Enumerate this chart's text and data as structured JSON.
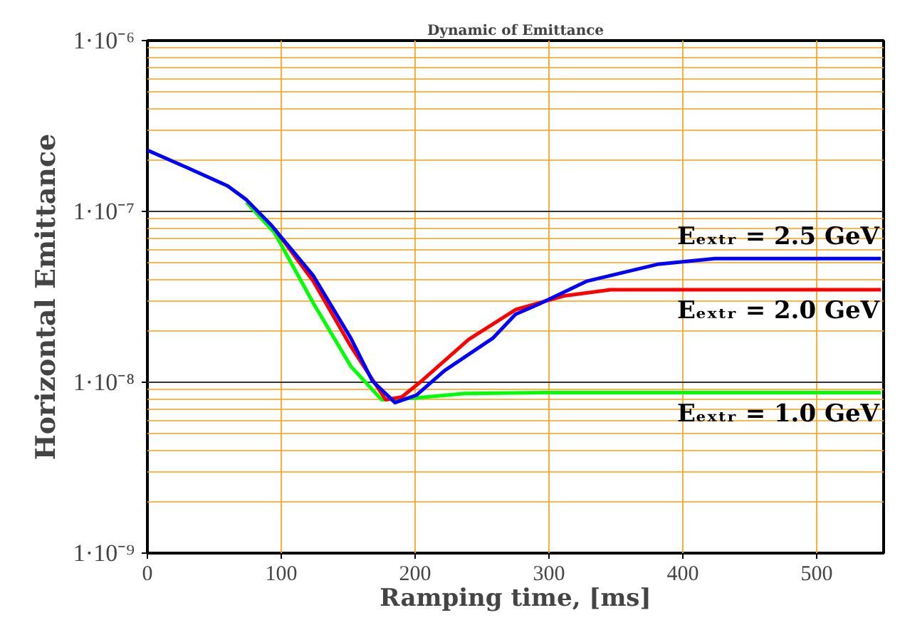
{
  "chart_data": {
    "type": "line",
    "title": "Dynamic of Emittance",
    "xlabel": "Ramping time, [ms]",
    "ylabel": "Horizontal Emittance",
    "log": "y",
    "grid": true,
    "xlim": [
      0,
      550
    ],
    "xticks": [
      0,
      100,
      200,
      300,
      400,
      500
    ],
    "ylim": [
      1e-09,
      1e-06
    ],
    "yticks": [
      {
        "value": 1e-09,
        "label": "1·10⁻⁹"
      },
      {
        "value": 2e-09,
        "label": null
      },
      {
        "value": 3e-09,
        "label": null
      },
      {
        "value": 4e-09,
        "label": null
      },
      {
        "value": 5e-09,
        "label": null
      },
      {
        "value": 6e-09,
        "label": null
      },
      {
        "value": 7e-09,
        "label": null
      },
      {
        "value": 8e-09,
        "label": null
      },
      {
        "value": 9e-09,
        "label": null
      },
      {
        "value": 1e-08,
        "label": "1·10⁻⁸"
      },
      {
        "value": 2e-08,
        "label": null
      },
      {
        "value": 3e-08,
        "label": null
      },
      {
        "value": 4e-08,
        "label": null
      },
      {
        "value": 5e-08,
        "label": null
      },
      {
        "value": 6e-08,
        "label": null
      },
      {
        "value": 7e-08,
        "label": null
      },
      {
        "value": 8e-08,
        "label": null
      },
      {
        "value": 9e-08,
        "label": null
      },
      {
        "value": 1e-07,
        "label": "1·10⁻⁷"
      },
      {
        "value": 2e-07,
        "label": null
      },
      {
        "value": 3e-07,
        "label": null
      },
      {
        "value": 4e-07,
        "label": null
      },
      {
        "value": 5e-07,
        "label": null
      },
      {
        "value": 6e-07,
        "label": null
      },
      {
        "value": 7e-07,
        "label": null
      },
      {
        "value": 8e-07,
        "label": null
      },
      {
        "value": 9e-07,
        "label": null
      },
      {
        "value": 1e-06,
        "label": "1·10⁻⁶"
      }
    ],
    "series": [
      {
        "name": "Eₑₓₜᵣ = 2.5 GeV",
        "color": "#0000ff",
        "x": [
          0,
          30,
          60,
          74,
          92,
          124,
          152,
          168,
          185,
          201,
          222,
          258,
          275,
          293,
          328,
          381,
          424,
          548
        ],
        "values": [
          2.28e-07,
          1.8e-07,
          1.41e-07,
          1.17e-07,
          8.4e-08,
          4.2e-08,
          1.81e-08,
          1.02e-08,
          7.6e-09,
          8.4e-09,
          1.17e-08,
          1.81e-08,
          2.5e-08,
          2.88e-08,
          3.9e-08,
          4.9e-08,
          5.3e-08,
          5.3e-08
        ]
      },
      {
        "name": "Eₑₓₜᵣ = 2.0 GeV",
        "color": "#ff0000",
        "x": [
          95,
          124,
          152,
          178,
          190,
          205,
          240,
          275,
          311,
          346,
          368,
          548
        ],
        "values": [
          7.9e-08,
          3.9e-08,
          1.62e-08,
          7.9e-09,
          8.2e-09,
          1.02e-08,
          1.78e-08,
          2.66e-08,
          3.2e-08,
          3.48e-08,
          3.48e-08,
          3.48e-08
        ]
      },
      {
        "name": "Eₑₓₜᵣ = 1.0 GeV",
        "color": "#00ff00",
        "x": [
          74,
          95,
          124,
          152,
          175,
          201,
          237,
          300,
          548
        ],
        "values": [
          1.13e-07,
          7.5e-08,
          2.9e-08,
          1.24e-08,
          7.9e-09,
          8.1e-09,
          8.6e-09,
          8.7e-09,
          8.7e-09
        ]
      }
    ]
  }
}
